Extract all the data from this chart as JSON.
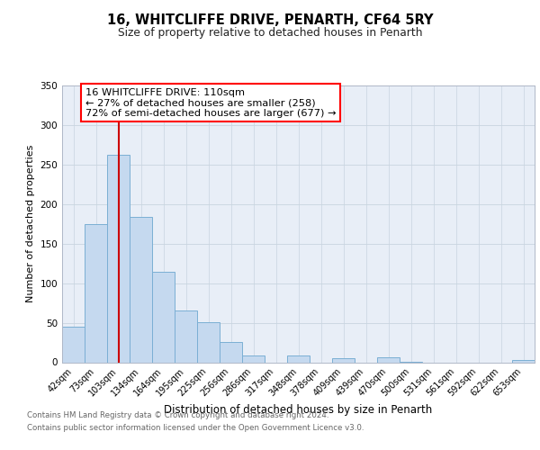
{
  "title": "16, WHITCLIFFE DRIVE, PENARTH, CF64 5RY",
  "subtitle": "Size of property relative to detached houses in Penarth",
  "xlabel": "Distribution of detached houses by size in Penarth",
  "ylabel": "Number of detached properties",
  "bar_labels": [
    "42sqm",
    "73sqm",
    "103sqm",
    "134sqm",
    "164sqm",
    "195sqm",
    "225sqm",
    "256sqm",
    "286sqm",
    "317sqm",
    "348sqm",
    "378sqm",
    "409sqm",
    "439sqm",
    "470sqm",
    "500sqm",
    "531sqm",
    "561sqm",
    "592sqm",
    "622sqm",
    "653sqm"
  ],
  "bar_values": [
    45,
    175,
    262,
    184,
    114,
    65,
    51,
    26,
    8,
    0,
    9,
    0,
    5,
    0,
    6,
    1,
    0,
    0,
    0,
    0,
    3
  ],
  "bar_color": "#c5d9ef",
  "bar_edge_color": "#7bafd4",
  "vline_x_index": 2,
  "vline_color": "#cc0000",
  "ylim": [
    0,
    350
  ],
  "yticks": [
    0,
    50,
    100,
    150,
    200,
    250,
    300,
    350
  ],
  "annotation_title": "16 WHITCLIFFE DRIVE: 110sqm",
  "annotation_line1": "← 27% of detached houses are smaller (258)",
  "annotation_line2": "72% of semi-detached houses are larger (677) →",
  "footer_line1": "Contains HM Land Registry data © Crown copyright and database right 2024.",
  "footer_line2": "Contains public sector information licensed under the Open Government Licence v3.0.",
  "bg_color": "#e8eef7",
  "fig_bg": "#ffffff",
  "grid_color": "#c8d4e0"
}
